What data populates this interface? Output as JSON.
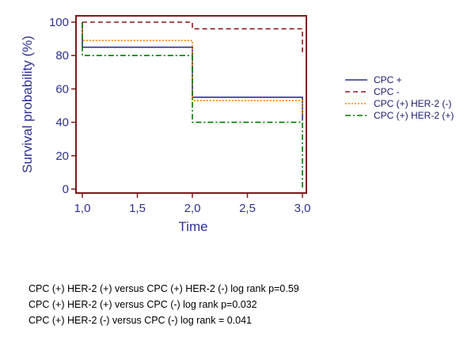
{
  "chart_data": {
    "type": "line",
    "step": true,
    "xlabel": "Time",
    "ylabel": "Survival probability (%)",
    "xlim": [
      1.0,
      3.0
    ],
    "ylim": [
      0,
      100
    ],
    "xticks": [
      "1,0",
      "1,5",
      "2,0",
      "2,5",
      "3,0"
    ],
    "xtick_values": [
      1.0,
      1.5,
      2.0,
      2.5,
      3.0
    ],
    "yticks": [
      "0",
      "20",
      "40",
      "60",
      "80",
      "100"
    ],
    "ytick_values": [
      0,
      20,
      40,
      60,
      80,
      100
    ],
    "legend_position": "right",
    "series": [
      {
        "name": "CPC +",
        "color": "#2e3192",
        "dash": "solid",
        "points": [
          [
            1.0,
            100
          ],
          [
            1.0,
            85
          ],
          [
            2.0,
            85
          ],
          [
            2.0,
            55
          ],
          [
            3.0,
            55
          ],
          [
            3.0,
            41
          ]
        ]
      },
      {
        "name": "CPC -",
        "color": "#8b1a1a",
        "dash": "dashed",
        "points": [
          [
            1.0,
            100
          ],
          [
            2.0,
            100
          ],
          [
            2.0,
            96
          ],
          [
            3.0,
            96
          ],
          [
            3.0,
            80
          ]
        ]
      },
      {
        "name": "CPC (+)  HER-2 (-)",
        "color": "#ff7f00",
        "dash": "dotted",
        "points": [
          [
            1.0,
            100
          ],
          [
            1.0,
            89
          ],
          [
            2.0,
            89
          ],
          [
            2.0,
            53
          ],
          [
            3.0,
            53
          ],
          [
            3.0,
            45
          ]
        ]
      },
      {
        "name": "CPC (+) HER-2 (+)",
        "color": "#007a00",
        "dash": "dashdot",
        "points": [
          [
            1.0,
            100
          ],
          [
            1.0,
            80
          ],
          [
            2.0,
            80
          ],
          [
            2.0,
            40
          ],
          [
            3.0,
            40
          ],
          [
            3.0,
            0
          ]
        ]
      }
    ]
  },
  "notes": [
    "CPC (+) HER-2 (+) versus CPC (+) HER-2 (-) log rank p=0.59",
    "CPC (+) HER-2 (+) versus CPC (-) log rank p=0.032",
    "CPC (+) HER-2 (-) versus CPC (-) log rank = 0.041"
  ],
  "colors": {
    "frame": "#7a1a1a",
    "text": "#2e3192"
  }
}
